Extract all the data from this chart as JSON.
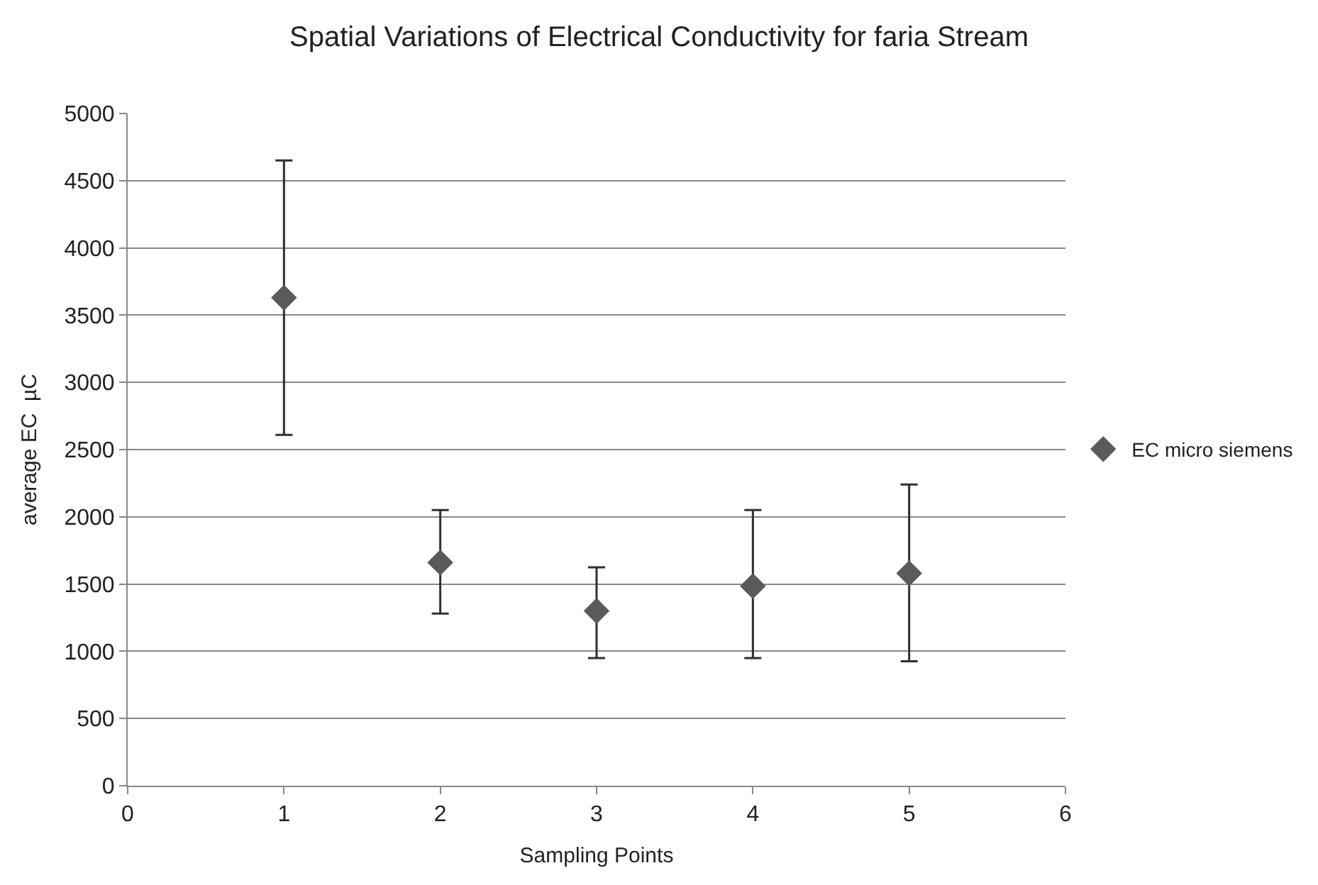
{
  "chart_data": {
    "type": "scatter",
    "title": "Spatial Variations of Electrical Conductivity for faria Stream",
    "xlabel": "Sampling Points",
    "ylabel": "average EC  µC",
    "x": [
      1,
      2,
      3,
      4,
      5
    ],
    "series": [
      {
        "name": "EC micro siemens",
        "color": "#5a5a5a",
        "values": [
          3630,
          1660,
          1300,
          1485,
          1580
        ],
        "errors": [
          [
            2610,
            4650
          ],
          [
            1280,
            2050
          ],
          [
            950,
            1625
          ],
          [
            950,
            2050
          ],
          [
            925,
            2240
          ]
        ]
      }
    ],
    "xlim": [
      0,
      6
    ],
    "xticks": [
      0,
      1,
      2,
      3,
      4,
      5,
      6
    ],
    "ylim": [
      0,
      5000
    ],
    "yticks": [
      0,
      500,
      1000,
      1500,
      2000,
      2500,
      3000,
      3500,
      4000,
      4500,
      5000
    ],
    "grid": "y",
    "legend": "right",
    "marker": "diamond"
  }
}
